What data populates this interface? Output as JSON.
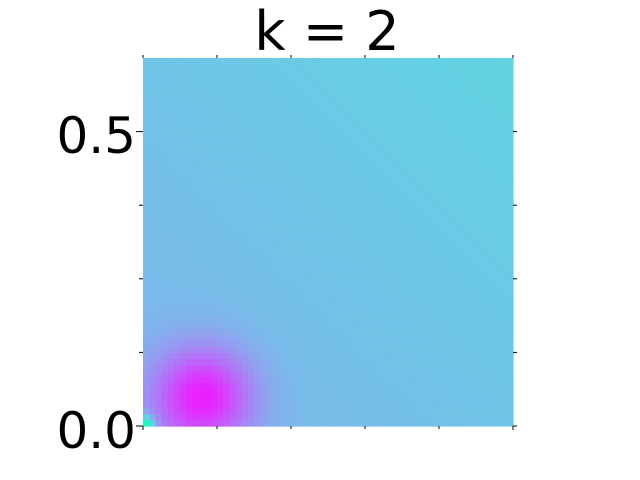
{
  "chart_data": {
    "type": "heatmap",
    "title": "k = 2",
    "xlabel": "",
    "ylabel": "",
    "xlim": [
      0,
      0.625
    ],
    "ylim": [
      0,
      0.625
    ],
    "yticks": [
      {
        "value": 0.0,
        "label": "0.0"
      },
      {
        "value": 0.5,
        "label": "0.5"
      }
    ],
    "minor_ticks_x": [
      0.125,
      0.25,
      0.375,
      0.5
    ],
    "minor_ticks_y": [
      0.125,
      0.25,
      0.375
    ],
    "colormap": "rainbow",
    "colorbar": false,
    "grid": false,
    "feature": {
      "minimum_at": [
        0.1,
        0.05
      ],
      "minimum_color": "#7d00ff",
      "corner_origin_color": "#7fffd4",
      "top_right_color": "#12c4e6",
      "mid_color": "#00b0ea"
    }
  }
}
